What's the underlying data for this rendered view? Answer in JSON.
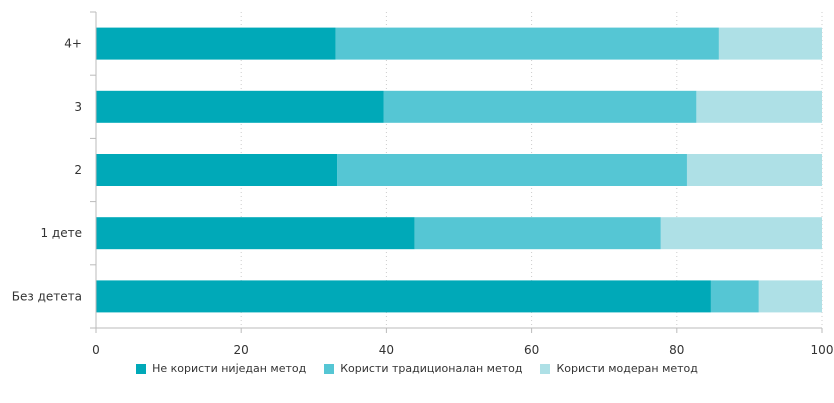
{
  "chart_data": {
    "type": "bar",
    "orientation": "horizontal",
    "stacked": true,
    "title": "",
    "xlabel": "",
    "ylabel": "",
    "xlim": [
      0,
      100
    ],
    "xticks": [
      0,
      20,
      40,
      60,
      80,
      100
    ],
    "grid": "vertical dotted",
    "legend_position": "bottom-center",
    "categories": [
      "4+",
      "3",
      "2",
      "1 дете",
      "Без детета"
    ],
    "series": [
      {
        "name": "Не користи ниједан метод",
        "color": "#00a9b8",
        "values": [
          33,
          39.6,
          33.2,
          43.9,
          84.7
        ]
      },
      {
        "name": "Користи традиционалан метод",
        "color": "#55c6d4",
        "values": [
          52.8,
          43.1,
          48.2,
          33.9,
          6.6
        ]
      },
      {
        "name": "Користи модеран метод",
        "color": "#aee0e6",
        "values": [
          14.2,
          17.3,
          18.6,
          22.2,
          8.7
        ]
      }
    ]
  }
}
